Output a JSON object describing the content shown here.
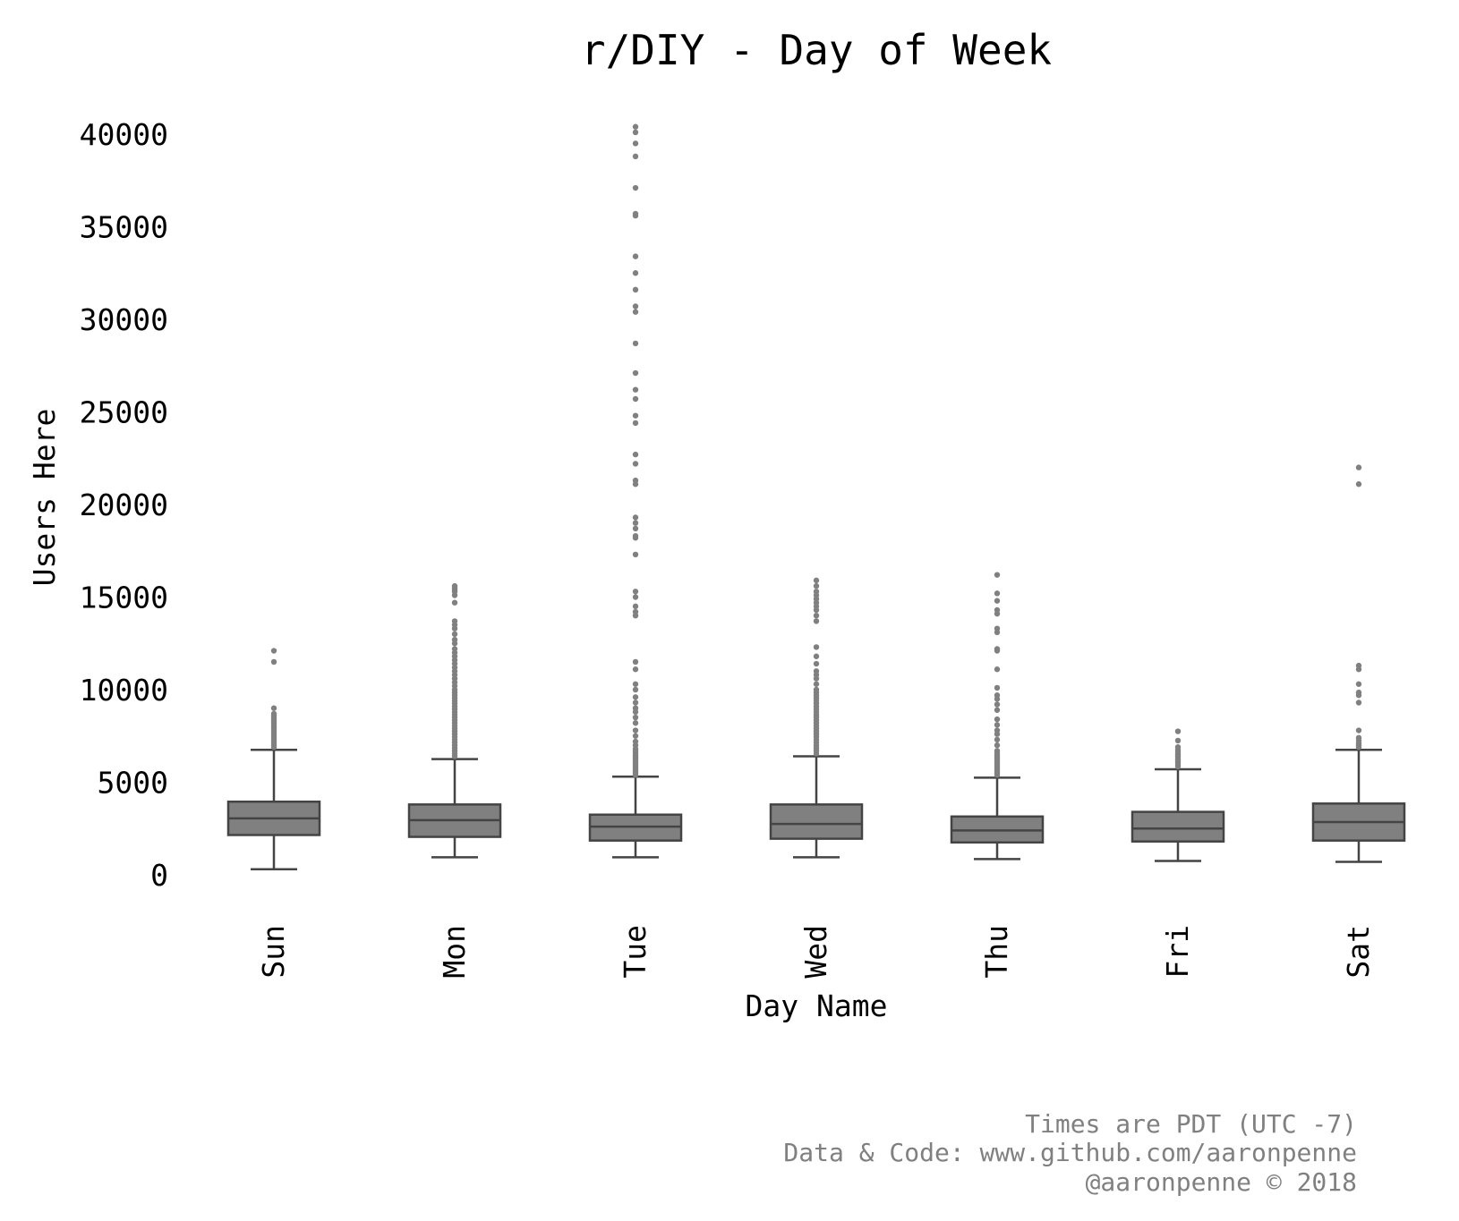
{
  "chart_data": {
    "type": "box",
    "title": "r/DIY - Day of Week",
    "xlabel": "Day Name",
    "ylabel": "Users Here",
    "ylim": [
      -1000,
      41000
    ],
    "yticks": [
      0,
      5000,
      10000,
      15000,
      20000,
      25000,
      30000,
      35000,
      40000
    ],
    "grid": false,
    "categories": [
      "Sun",
      "Mon",
      "Tue",
      "Wed",
      "Thu",
      "Fri",
      "Sat"
    ],
    "boxes": [
      {
        "category": "Sun",
        "whisker_low": 300,
        "q1": 2150,
        "median": 3050,
        "q3": 3950,
        "whisker_high": 6750,
        "outliers": [
          6900,
          7000,
          7100,
          7200,
          7300,
          7400,
          7500,
          7600,
          7700,
          7800,
          7900,
          8000,
          8100,
          8200,
          8300,
          8400,
          8500,
          8600,
          8700,
          9000,
          11500,
          12100
        ]
      },
      {
        "category": "Mon",
        "whisker_low": 950,
        "q1": 2050,
        "median": 2950,
        "q3": 3800,
        "whisker_high": 6250,
        "outliers": [
          6400,
          6550,
          6700,
          6850,
          7000,
          7150,
          7300,
          7450,
          7600,
          7750,
          7900,
          8050,
          8200,
          8350,
          8500,
          8650,
          8800,
          8950,
          9100,
          9250,
          9400,
          9550,
          9700,
          9850,
          10000,
          10200,
          10400,
          10600,
          10800,
          11000,
          11200,
          11400,
          11600,
          11800,
          12000,
          12200,
          12500,
          12700,
          13000,
          13300,
          13500,
          13700,
          14700,
          15100,
          15300,
          15400,
          15500,
          15600
        ]
      },
      {
        "category": "Tue",
        "whisker_low": 950,
        "q1": 1850,
        "median": 2600,
        "q3": 3250,
        "whisker_high": 5300,
        "outliers": [
          5400,
          5500,
          5600,
          5700,
          5800,
          5900,
          6000,
          6100,
          6200,
          6300,
          6400,
          6500,
          6600,
          6700,
          6800,
          7000,
          7200,
          7500,
          7800,
          8200,
          8500,
          8800,
          9000,
          9300,
          9600,
          10000,
          10300,
          11100,
          11500,
          14000,
          14200,
          14500,
          15000,
          15300,
          17300,
          18200,
          18300,
          18700,
          19000,
          19300,
          21100,
          21300,
          22200,
          22700,
          24400,
          24800,
          25700,
          26200,
          27100,
          28700,
          30400,
          30700,
          31600,
          32500,
          33400,
          35600,
          35700,
          37100,
          38800,
          39500,
          40100,
          40400
        ]
      },
      {
        "category": "Wed",
        "whisker_low": 950,
        "q1": 1950,
        "median": 2750,
        "q3": 3800,
        "whisker_high": 6400,
        "outliers": [
          6550,
          6700,
          6850,
          7000,
          7150,
          7300,
          7450,
          7600,
          7750,
          7900,
          8050,
          8200,
          8350,
          8500,
          8650,
          8800,
          8950,
          9100,
          9250,
          9400,
          9550,
          9700,
          9850,
          10000,
          10300,
          10600,
          10800,
          11000,
          11400,
          11800,
          12300,
          13700,
          14000,
          14300,
          14500,
          14700,
          14900,
          15100,
          15300,
          15600,
          15900
        ]
      },
      {
        "category": "Thu",
        "whisker_low": 850,
        "q1": 1750,
        "median": 2400,
        "q3": 3150,
        "whisker_high": 5250,
        "outliers": [
          5400,
          5500,
          5600,
          5700,
          5800,
          5900,
          6000,
          6100,
          6200,
          6300,
          6400,
          6500,
          6600,
          6700,
          7000,
          7300,
          7600,
          7800,
          8100,
          8400,
          8900,
          9200,
          9500,
          9700,
          10100,
          11100,
          12100,
          12200,
          13100,
          13300,
          14100,
          14300,
          14800,
          15200,
          16200
        ]
      },
      {
        "category": "Fri",
        "whisker_low": 750,
        "q1": 1800,
        "median": 2500,
        "q3": 3400,
        "whisker_high": 5700,
        "outliers": [
          5850,
          5950,
          6050,
          6150,
          6250,
          6350,
          6450,
          6550,
          6650,
          6750,
          6900,
          7250,
          7750
        ]
      },
      {
        "category": "Sat",
        "whisker_low": 700,
        "q1": 1850,
        "median": 2850,
        "q3": 3850,
        "whisker_high": 6750,
        "outliers": [
          6900,
          7000,
          7100,
          7250,
          7400,
          7800,
          9300,
          9700,
          9850,
          10300,
          11100,
          11300,
          21100,
          22000
        ]
      }
    ],
    "colors": {
      "box": "#808080",
      "line": "#444444",
      "outlier": "#808080"
    }
  },
  "credits": [
    "Times are PDT (UTC -7)",
    "Data & Code: www.github.com/aaronpenne",
    "@aaronpenne © 2018"
  ]
}
